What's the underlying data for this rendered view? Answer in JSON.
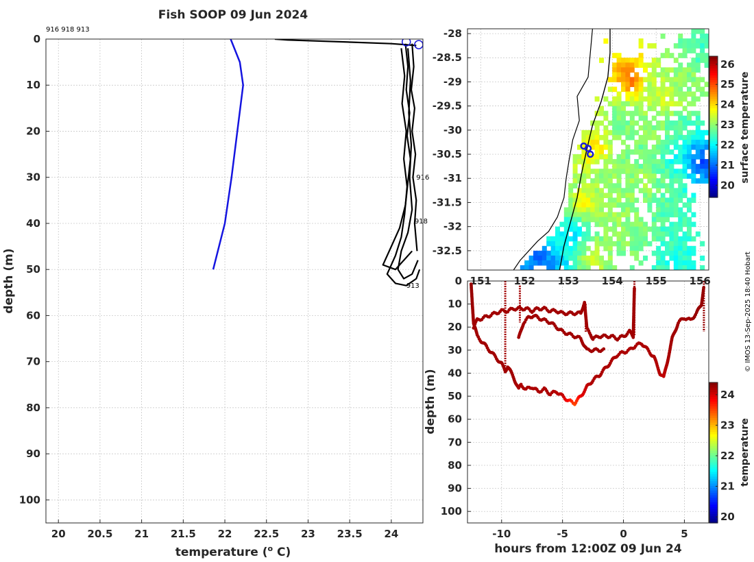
{
  "figure": {
    "title": "Fish SOOP 09 Jun 2024",
    "credit": "© IMOS 13-Sep-2025 18:40 Hobart",
    "colors": {
      "profile_mean": "#1414e0",
      "profile_casts": "#000000",
      "location_marker": "#1a1ad8",
      "depth_trace": "#a0160a"
    }
  },
  "chart_data": [
    {
      "type": "line",
      "id": "profile",
      "title": "Fish SOOP 09 Jun 2024",
      "xlabel": "temperature (",
      "xlabel_sup": "o",
      "xlabel_suffix": " C)",
      "ylabel": "depth (m)",
      "xlim": [
        19.85,
        24.38
      ],
      "ylim": [
        0,
        105
      ],
      "y_reversed": true,
      "x_ticks": [
        20,
        20.5,
        21,
        21.5,
        22,
        22.5,
        23,
        23.5,
        24
      ],
      "x_tick_labels": [
        "20",
        "20.5",
        "21",
        "21.5",
        "22",
        "22.5",
        "23",
        "23.5",
        "24"
      ],
      "y_ticks": [
        0,
        10,
        20,
        30,
        40,
        50,
        60,
        70,
        80,
        90,
        100
      ],
      "y_tick_labels": [
        "0",
        "10",
        "20",
        "30",
        "40",
        "50",
        "60",
        "70",
        "80",
        "90",
        "100"
      ],
      "grid": true,
      "top_annotation": "916 918 913",
      "cast_labels": [
        {
          "text": "916",
          "t": 24.3,
          "d": 30.5
        },
        {
          "text": "918",
          "t": 24.28,
          "d": 40
        },
        {
          "text": "913",
          "t": 24.18,
          "d": 54
        }
      ],
      "series": [
        {
          "name": "mean profile",
          "color": "#1414e0",
          "x": [
            22.07,
            22.18,
            22.22,
            22.08,
            22.0,
            21.86
          ],
          "y": [
            0,
            5,
            10,
            30,
            40,
            50
          ]
        },
        {
          "name": "surface cast",
          "color": "#000000",
          "x": [
            22.6,
            22.75,
            23.4,
            24.0,
            24.3
          ],
          "y": [
            0,
            0.2,
            0.6,
            1.0,
            1.4
          ]
        },
        {
          "name": "cast 916",
          "color": "#000000",
          "x": [
            24.25,
            24.27,
            24.24,
            24.28,
            24.25,
            24.29,
            24.26,
            24.3,
            24.28,
            24.31
          ],
          "y": [
            1,
            6,
            11,
            15,
            20,
            25,
            30,
            35,
            40,
            46
          ]
        },
        {
          "name": "cast 918",
          "color": "#000000",
          "x": [
            24.17,
            24.2,
            24.18,
            24.22,
            24.19,
            24.23,
            24.2,
            24.17,
            24.1,
            24.0,
            23.9,
            24.05,
            24.15,
            24.25
          ],
          "y": [
            1,
            6,
            11,
            16,
            21,
            26,
            31,
            36,
            41,
            45,
            49,
            50,
            48,
            46
          ]
        },
        {
          "name": "cast 913",
          "color": "#000000",
          "x": [
            24.12,
            24.16,
            24.13,
            24.18,
            24.15,
            24.19,
            24.16,
            24.12,
            24.05,
            23.95,
            24.05,
            24.18,
            24.3,
            24.34
          ],
          "y": [
            2,
            8,
            14,
            20,
            26,
            32,
            38,
            43,
            47,
            51,
            53,
            53.5,
            52,
            50
          ]
        },
        {
          "name": "cast deep",
          "color": "#000000",
          "x": [
            24.2,
            24.23,
            24.21,
            24.24,
            24.22,
            24.25,
            24.2,
            24.12,
            24.08,
            24.15,
            24.25,
            24.32
          ],
          "y": [
            2,
            9,
            16,
            23,
            30,
            37,
            42,
            46,
            50,
            52,
            51,
            48
          ]
        }
      ],
      "markers": [
        {
          "t": 24.18,
          "d": 0.6
        },
        {
          "t": 24.33,
          "d": 1.2
        }
      ]
    },
    {
      "type": "heatmap",
      "id": "map",
      "colorbar_label": "surface temperature",
      "xlim": [
        150.7,
        156.2
      ],
      "ylim": [
        -32.9,
        -27.9
      ],
      "x_ticks": [
        151,
        152,
        153,
        154,
        155,
        156
      ],
      "x_tick_labels": [
        "151",
        "152",
        "153",
        "154",
        "155",
        "156"
      ],
      "y_ticks": [
        -28,
        -28.5,
        -29,
        -29.5,
        -30,
        -30.5,
        -31,
        -31.5,
        -32,
        -32.5
      ],
      "y_tick_labels": [
        "-28",
        "-28.5",
        "-29",
        "-29.5",
        "-30",
        "-30.5",
        "-31",
        "-31.5",
        "-32",
        "-32.5"
      ],
      "clim": [
        19.4,
        26.4
      ],
      "colorbar_ticks": [
        20,
        21,
        22,
        23,
        24,
        25,
        26
      ],
      "colorbar_tick_labels": [
        "20",
        "21",
        "22",
        "23",
        "24",
        "25",
        "26"
      ],
      "sst_patches": [
        {
          "lon": 154.4,
          "lat": -28.9,
          "v": 24.8
        },
        {
          "lon": 154.9,
          "lat": -29.0,
          "v": 23.2
        },
        {
          "lon": 155.2,
          "lat": -29.3,
          "v": 23.5
        },
        {
          "lon": 154.2,
          "lat": -29.7,
          "v": 22.8
        },
        {
          "lon": 155.0,
          "lat": -30.1,
          "v": 23.0
        },
        {
          "lon": 155.6,
          "lat": -30.0,
          "v": 22.6
        },
        {
          "lon": 155.9,
          "lat": -30.4,
          "v": 21.3
        },
        {
          "lon": 156.0,
          "lat": -30.6,
          "v": 20.6
        },
        {
          "lon": 155.4,
          "lat": -30.5,
          "v": 22.1
        },
        {
          "lon": 154.6,
          "lat": -30.6,
          "v": 22.7
        },
        {
          "lon": 153.5,
          "lat": -30.4,
          "v": 24.1
        },
        {
          "lon": 153.1,
          "lat": -30.5,
          "v": 23.4
        },
        {
          "lon": 153.7,
          "lat": -30.9,
          "v": 23.0
        },
        {
          "lon": 154.7,
          "lat": -31.0,
          "v": 23.3
        },
        {
          "lon": 155.2,
          "lat": -31.1,
          "v": 22.7
        },
        {
          "lon": 153.3,
          "lat": -31.4,
          "v": 23.8
        },
        {
          "lon": 152.9,
          "lat": -31.2,
          "v": 22.9
        },
        {
          "lon": 154.0,
          "lat": -31.6,
          "v": 23.1
        },
        {
          "lon": 152.6,
          "lat": -32.0,
          "v": 22.4
        },
        {
          "lon": 153.0,
          "lat": -32.1,
          "v": 21.8
        },
        {
          "lon": 155.3,
          "lat": -32.0,
          "v": 22.5
        },
        {
          "lon": 154.3,
          "lat": -32.1,
          "v": 23.0
        },
        {
          "lon": 153.5,
          "lat": -32.6,
          "v": 23.4
        },
        {
          "lon": 152.3,
          "lat": -32.6,
          "v": 20.9
        },
        {
          "lon": 152.5,
          "lat": -32.8,
          "v": 21.4
        },
        {
          "lon": 155.4,
          "lat": -32.6,
          "v": 22.2
        },
        {
          "lon": 156.0,
          "lat": -28.2,
          "v": 22.4
        },
        {
          "lon": 155.6,
          "lat": -29.0,
          "v": 23.0
        }
      ],
      "coastline": [
        {
          "lon": 153.55,
          "lat": -27.9
        },
        {
          "lon": 153.5,
          "lat": -28.4
        },
        {
          "lon": 153.45,
          "lat": -28.9
        },
        {
          "lon": 153.2,
          "lat": -29.3
        },
        {
          "lon": 153.25,
          "lat": -29.8
        },
        {
          "lon": 153.1,
          "lat": -30.2
        },
        {
          "lon": 153.02,
          "lat": -30.6
        },
        {
          "lon": 152.95,
          "lat": -31.0
        },
        {
          "lon": 152.9,
          "lat": -31.4
        },
        {
          "lon": 152.75,
          "lat": -31.8
        },
        {
          "lon": 152.55,
          "lat": -32.1
        },
        {
          "lon": 152.3,
          "lat": -32.3
        },
        {
          "lon": 152.1,
          "lat": -32.5
        },
        {
          "lon": 151.9,
          "lat": -32.7
        },
        {
          "lon": 151.75,
          "lat": -32.9
        }
      ],
      "shelf_contour": [
        {
          "lon": 153.95,
          "lat": -27.9
        },
        {
          "lon": 153.95,
          "lat": -28.4
        },
        {
          "lon": 153.9,
          "lat": -28.9
        },
        {
          "lon": 153.75,
          "lat": -29.4
        },
        {
          "lon": 153.55,
          "lat": -29.9
        },
        {
          "lon": 153.42,
          "lat": -30.4
        },
        {
          "lon": 153.3,
          "lat": -30.9
        },
        {
          "lon": 153.2,
          "lat": -31.4
        },
        {
          "lon": 153.05,
          "lat": -31.9
        },
        {
          "lon": 152.9,
          "lat": -32.4
        },
        {
          "lon": 152.8,
          "lat": -32.9
        }
      ],
      "track_positions": [
        {
          "lon": 153.35,
          "lat": -30.33
        },
        {
          "lon": 153.45,
          "lat": -30.38
        },
        {
          "lon": 153.5,
          "lat": -30.5
        }
      ]
    },
    {
      "type": "scatter",
      "id": "depth_time",
      "xlabel": "hours from 12:00Z 09 Jun 24",
      "ylabel": "depth (m)",
      "colorbar_label": "temperature",
      "xlim": [
        -12.8,
        7.0
      ],
      "ylim": [
        0,
        105
      ],
      "y_reversed": true,
      "x_ticks": [
        -10,
        -5,
        0,
        5
      ],
      "x_tick_labels": [
        "-10",
        "-5",
        "0",
        "5"
      ],
      "y_ticks": [
        0,
        10,
        20,
        30,
        40,
        50,
        60,
        70,
        80,
        90,
        100
      ],
      "y_tick_labels": [
        "0",
        "10",
        "20",
        "30",
        "40",
        "50",
        "60",
        "70",
        "80",
        "90",
        "100"
      ],
      "clim": [
        19.8,
        24.4
      ],
      "colorbar_ticks": [
        20,
        21,
        22,
        23,
        24
      ],
      "colorbar_tick_labels": [
        "20",
        "21",
        "22",
        "23",
        "24"
      ],
      "traces": [
        {
          "name": "deep track",
          "hours": [
            -12.5,
            -12.3,
            -12.0,
            -11.5,
            -11.0,
            -10.5,
            -10.0,
            -9.7,
            -9.5,
            -9.0,
            -8.6,
            -8.4,
            -8.0,
            -7.5,
            -7.0,
            -6.5,
            -6.0,
            -5.5,
            -5.0,
            -4.5,
            -4.0,
            -3.5,
            -3.0,
            -2.5,
            -2.0,
            -1.5,
            -1.0,
            -0.5,
            0.0,
            0.5,
            1.0,
            1.5,
            2.0,
            2.5,
            3.0,
            3.3,
            3.6,
            4.0,
            4.5,
            5.0,
            5.5,
            6.0,
            6.4,
            6.6
          ],
          "depths": [
            1,
            18,
            24,
            27,
            30,
            33,
            36,
            39,
            37,
            42,
            47,
            45,
            47,
            46,
            48,
            47,
            49,
            48,
            50,
            52,
            53,
            50,
            46,
            43,
            41,
            38,
            35,
            32,
            31,
            30,
            28,
            27,
            30,
            33,
            40,
            42,
            35,
            25,
            18,
            16,
            17,
            14,
            10,
            2
          ],
          "temps": [
            24.3,
            24.25,
            24.25,
            24.25,
            24.25,
            24.25,
            24.25,
            24.25,
            24.25,
            24.25,
            24.2,
            24.2,
            24.2,
            24.2,
            24.2,
            24.2,
            24.2,
            24.15,
            24.1,
            23.8,
            23.5,
            23.9,
            24.1,
            24.2,
            24.2,
            24.2,
            24.2,
            24.2,
            24.2,
            24.2,
            24.2,
            24.2,
            24.2,
            24.2,
            24.15,
            24.1,
            24.2,
            24.25,
            24.25,
            24.25,
            24.25,
            24.3,
            24.3,
            24.3
          ]
        },
        {
          "name": "shallow track",
          "hours": [
            -12.3,
            -12.0,
            -11.5,
            -11.0,
            -10.5,
            -10.0,
            -9.5,
            -9.0,
            -8.5,
            -8.0,
            -7.5,
            -7.0,
            -6.5,
            -6.0,
            -5.5,
            -5.0,
            -4.5,
            -4.0,
            -3.5,
            -3.2,
            -3.0,
            -2.7,
            -2.5,
            -2.0,
            -1.5,
            -1.0,
            -0.5,
            0.0,
            0.5,
            0.8,
            0.9
          ],
          "depths": [
            20,
            17,
            16,
            15,
            14,
            13,
            13,
            12,
            12,
            12,
            13,
            12,
            12,
            13,
            13,
            14,
            14,
            14,
            14,
            9,
            21,
            23,
            25,
            24,
            24,
            24,
            25,
            24,
            22,
            24,
            2
          ],
          "temps": [
            24.25,
            24.25,
            24.25,
            24.25,
            24.25,
            24.25,
            24.25,
            24.25,
            24.25,
            24.25,
            24.25,
            24.25,
            24.25,
            24.25,
            24.25,
            24.25,
            24.25,
            24.25,
            24.25,
            24.25,
            24.25,
            24.25,
            24.25,
            24.25,
            24.25,
            24.25,
            24.25,
            24.25,
            24.25,
            24.25,
            24.25
          ]
        },
        {
          "name": "middle track",
          "hours": [
            -8.6,
            -8.2,
            -7.8,
            -7.4,
            -7.0,
            -6.5,
            -6.0,
            -5.5,
            -5.0,
            -4.5,
            -4.0,
            -3.5,
            -3.2,
            -3.0,
            -2.5,
            -2.0,
            -1.5
          ],
          "depths": [
            25,
            18,
            16,
            15,
            16,
            17,
            18,
            20,
            22,
            23,
            24,
            25,
            28,
            30,
            30,
            30,
            30
          ],
          "temps": [
            24.25,
            24.25,
            24.25,
            24.25,
            24.25,
            24.25,
            24.25,
            24.25,
            24.25,
            24.25,
            24.25,
            24.25,
            24.25,
            24.25,
            24.25,
            24.25,
            24.25
          ]
        },
        {
          "name": "vertical casts",
          "hours": [
            -9.7,
            -9.7,
            -8.5,
            -8.5,
            -3.1,
            -3.1,
            0.9,
            0.9,
            6.6,
            6.6
          ],
          "depths": [
            0,
            40,
            2,
            18,
            10,
            22,
            0,
            24,
            0,
            22
          ],
          "temps": [
            24.25,
            24.25,
            24.25,
            24.25,
            24.25,
            24.25,
            24.25,
            24.25,
            24.3,
            24.3
          ]
        }
      ]
    }
  ]
}
